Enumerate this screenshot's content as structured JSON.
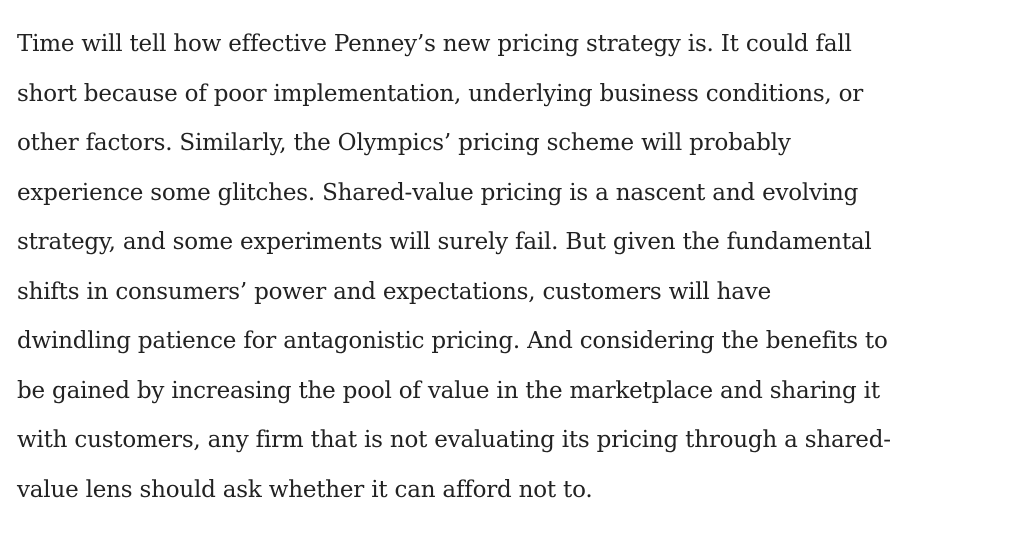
{
  "paragraph": {
    "lines": [
      "Time will tell how effective Penney’s new pricing strategy is. It could fall",
      "short because of poor implementation, underlying business conditions, or",
      "other factors. Similarly, the Olympics’ pricing scheme will probably",
      "experience some glitches. Shared-value pricing is a nascent and evolving",
      "strategy, and some experiments will surely fail. But given the fundamental",
      "shifts in consumers’ power and expectations, customers will have",
      "dwindling patience for antagonistic pricing. And considering the benefits to",
      "be gained by increasing the pool of value in the marketplace and sharing it",
      "with customers, any firm that is not evaluating its pricing through a shared-",
      "value lens should ask whether it can afford not to."
    ]
  }
}
